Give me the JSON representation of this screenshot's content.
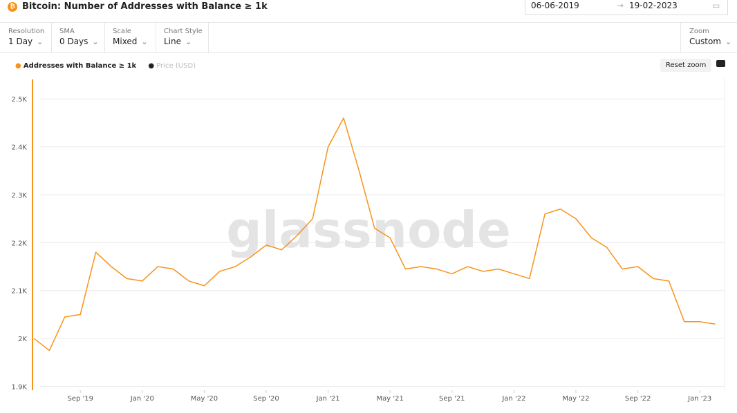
{
  "header": {
    "title": "Bitcoin: Number of Addresses with Balance ≥ 1k",
    "date_from": "06-06-2019",
    "date_to": "19-02-2023"
  },
  "controls": [
    {
      "label": "Resolution",
      "value": "1 Day"
    },
    {
      "label": "SMA",
      "value": "0 Days"
    },
    {
      "label": "Scale",
      "value": "Mixed"
    },
    {
      "label": "Chart Style",
      "value": "Line"
    }
  ],
  "zoom": {
    "label": "Zoom",
    "value": "Custom"
  },
  "reset_button": "Reset zoom",
  "chart_data": {
    "type": "line",
    "watermark": "glassnode",
    "inactive_legend": [
      "Price (USD)"
    ],
    "categories": [
      "2019-06",
      "2019-07",
      "2019-08",
      "2019-09",
      "2019-10",
      "2019-11",
      "2019-12",
      "2020-01",
      "2020-02",
      "2020-03",
      "2020-04",
      "2020-05",
      "2020-06",
      "2020-07",
      "2020-08",
      "2020-09",
      "2020-10",
      "2020-11",
      "2020-12",
      "2021-01",
      "2021-02",
      "2021-03",
      "2021-04",
      "2021-05",
      "2021-06",
      "2021-07",
      "2021-08",
      "2021-09",
      "2021-10",
      "2021-11",
      "2021-12",
      "2022-01",
      "2022-02",
      "2022-03",
      "2022-04",
      "2022-05",
      "2022-06",
      "2022-07",
      "2022-08",
      "2022-09",
      "2022-10",
      "2022-11",
      "2022-12",
      "2023-01",
      "2023-02"
    ],
    "series": [
      {
        "name": "Addresses with Balance ≥ 1k",
        "color": "#f7931a",
        "values": [
          2000,
          1975,
          2045,
          2050,
          2180,
          2150,
          2125,
          2120,
          2150,
          2145,
          2120,
          2110,
          2140,
          2150,
          2170,
          2195,
          2185,
          2215,
          2250,
          2400,
          2460,
          2350,
          2230,
          2210,
          2145,
          2150,
          2145,
          2135,
          2150,
          2140,
          2145,
          2135,
          2125,
          2260,
          2270,
          2250,
          2210,
          2190,
          2145,
          2150,
          2125,
          2120,
          2035,
          2035,
          2030
        ]
      }
    ],
    "ylim": [
      1892,
      2545
    ],
    "yticks": [
      {
        "value": 1900,
        "label": "1.9K"
      },
      {
        "value": 2000,
        "label": "2K"
      },
      {
        "value": 2100,
        "label": "2.1K"
      },
      {
        "value": 2200,
        "label": "2.2K"
      },
      {
        "value": 2300,
        "label": "2.3K"
      },
      {
        "value": 2400,
        "label": "2.4K"
      },
      {
        "value": 2500,
        "label": "2.5K"
      }
    ],
    "xticks": [
      {
        "value": "2019-09",
        "label": "Sep '19"
      },
      {
        "value": "2020-01",
        "label": "Jan '20"
      },
      {
        "value": "2020-05",
        "label": "May '20"
      },
      {
        "value": "2020-09",
        "label": "Sep '20"
      },
      {
        "value": "2021-01",
        "label": "Jan '21"
      },
      {
        "value": "2021-05",
        "label": "May '21"
      },
      {
        "value": "2021-09",
        "label": "Sep '21"
      },
      {
        "value": "2022-01",
        "label": "Jan '22"
      },
      {
        "value": "2022-05",
        "label": "May '22"
      },
      {
        "value": "2022-09",
        "label": "Sep '22"
      },
      {
        "value": "2023-01",
        "label": "Jan '23"
      }
    ],
    "grid": true
  }
}
